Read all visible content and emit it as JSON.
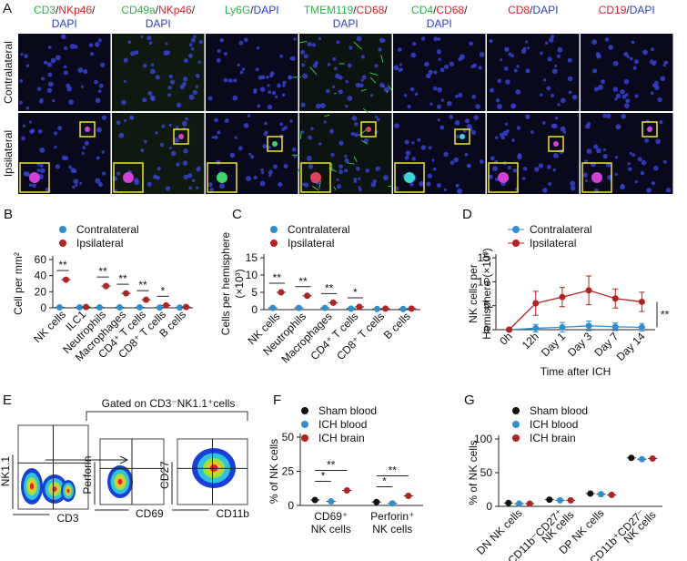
{
  "panel_a": {
    "label": "A",
    "rows": [
      "Contralateral",
      "Ipsilateral"
    ],
    "columns": [
      [
        [
          {
            "text": "CD3",
            "color": "#2db34a"
          },
          {
            "text": "/",
            "color": "#222222"
          },
          {
            "text": "NKp46",
            "color": "#e8212b"
          },
          {
            "text": "/",
            "color": "#222222"
          }
        ],
        [
          {
            "text": "DAPI",
            "color": "#2b3cd8"
          }
        ]
      ],
      [
        [
          {
            "text": "CD49a",
            "color": "#2db34a"
          },
          {
            "text": "/",
            "color": "#222222"
          },
          {
            "text": "NKp46",
            "color": "#e8212b"
          },
          {
            "text": "/",
            "color": "#222222"
          }
        ],
        [
          {
            "text": "DAPI",
            "color": "#2b3cd8"
          }
        ]
      ],
      [
        [
          {
            "text": "Ly6G",
            "color": "#2db34a"
          },
          {
            "text": "/",
            "color": "#222222"
          },
          {
            "text": "DAPI",
            "color": "#2b3cd8"
          }
        ]
      ],
      [
        [
          {
            "text": "TMEM119",
            "color": "#2db34a"
          },
          {
            "text": "/",
            "color": "#222222"
          },
          {
            "text": "CD68",
            "color": "#e8212b"
          },
          {
            "text": "/",
            "color": "#222222"
          }
        ],
        [
          {
            "text": "DAPI",
            "color": "#2b3cd8"
          }
        ]
      ],
      [
        [
          {
            "text": "CD4",
            "color": "#2db34a"
          },
          {
            "text": "/",
            "color": "#222222"
          },
          {
            "text": "CD68",
            "color": "#e8212b"
          },
          {
            "text": "/",
            "color": "#222222"
          }
        ],
        [
          {
            "text": "DAPI",
            "color": "#2b3cd8"
          }
        ]
      ],
      [
        [
          {
            "text": "CD8",
            "color": "#e8212b"
          },
          {
            "text": "/",
            "color": "#222222"
          },
          {
            "text": "DAPI",
            "color": "#2b3cd8"
          }
        ]
      ],
      [
        [
          {
            "text": "CD19",
            "color": "#e8212b"
          },
          {
            "text": "/",
            "color": "#222222"
          },
          {
            "text": "DAPI",
            "color": "#2b3cd8"
          }
        ]
      ]
    ]
  },
  "panel_e": {
    "label": "E",
    "gate": "Gated on CD3⁻NK1.1⁺cells",
    "plots": [
      {
        "y": "NK1.1",
        "x": "CD3"
      },
      {
        "y": "Perforin",
        "x": "CD69"
      },
      {
        "y": "CD27",
        "x": "CD11b"
      }
    ]
  },
  "chart_data": [
    {
      "type": "dot",
      "label": "B",
      "ylabel": [
        "Cell per mm²"
      ],
      "ylim": [
        0,
        60
      ],
      "yticks": [
        0,
        20,
        40,
        60
      ],
      "categories": [
        "NK cells",
        "ILC1",
        "Neutrophils",
        "Macrophages",
        "CD4⁺ T cells",
        "CD8⁺ T cells",
        "B cells"
      ],
      "series": [
        {
          "name": "Contralateral",
          "color": "#2e8fd0",
          "values": [
            0.5,
            0.5,
            0.5,
            0.5,
            0.5,
            0.3,
            0.3
          ]
        },
        {
          "name": "Ipsilateral",
          "color": "#b22222",
          "values": [
            35,
            1,
            27,
            18,
            10,
            3,
            1
          ]
        }
      ],
      "significance": [
        "**",
        null,
        "**",
        "**",
        "**",
        "*",
        null
      ]
    },
    {
      "type": "dot",
      "label": "C",
      "ylabel": [
        "Cells per hemisphere",
        "(×10³)"
      ],
      "ylim": [
        0,
        15
      ],
      "yticks": [
        0,
        5,
        10,
        15
      ],
      "categories": [
        "NK cells",
        "Neutrophils",
        "Macrophages",
        "CD4⁺ T cells",
        "CD8⁺ T cells",
        "B cells"
      ],
      "series": [
        {
          "name": "Contralateral",
          "color": "#2e8fd0",
          "values": [
            0.5,
            0.5,
            0.5,
            0.3,
            0.2,
            0.2
          ]
        },
        {
          "name": "Ipsilateral",
          "color": "#b22222",
          "values": [
            5,
            4,
            2,
            0.8,
            0.3,
            0.3
          ]
        }
      ],
      "significance": [
        "**",
        "**",
        "**",
        "*",
        null,
        null
      ]
    },
    {
      "type": "line",
      "label": "D",
      "ylabel": [
        "NK cells per",
        "Hemisphere (×10³)"
      ],
      "xlabel": "Time after ICH",
      "ylim": [
        0,
        15
      ],
      "yticks": [
        0,
        5,
        10,
        15
      ],
      "categories": [
        "0h",
        "12h",
        "Day 1",
        "Day 3",
        "Day 7",
        "Day 14"
      ],
      "series": [
        {
          "name": "Contralateral",
          "color": "#2e8fd0",
          "values": [
            0,
            0.3,
            0.5,
            0.8,
            0.6,
            0.5
          ],
          "errors": [
            0.3,
            0.8,
            1,
            1,
            0.8,
            0.8
          ]
        },
        {
          "name": "Ipsilateral",
          "color": "#b22222",
          "values": [
            0,
            5.5,
            6.8,
            8.2,
            6.5,
            5.8
          ],
          "errors": [
            0.2,
            2.5,
            2,
            3,
            2,
            2
          ]
        }
      ],
      "annotation": "**"
    },
    {
      "type": "dot",
      "label": "F",
      "ylabel": [
        "% of  NK cells"
      ],
      "ylim": [
        0,
        50
      ],
      "yticks": [
        0,
        25,
        50
      ],
      "categories": [
        [
          "CD69⁺",
          "NK cells"
        ],
        [
          "Perforin⁺",
          "NK cells"
        ]
      ],
      "series": [
        {
          "name": "Sham blood",
          "color": "#111111",
          "values": [
            4,
            2.5
          ]
        },
        {
          "name": "ICH blood",
          "color": "#2e8fd0",
          "values": [
            3,
            1.5
          ]
        },
        {
          "name": "ICH brain",
          "color": "#b22222",
          "values": [
            11,
            7
          ]
        }
      ],
      "significance": [
        [
          "*",
          "**"
        ],
        [
          "*",
          "**"
        ]
      ]
    },
    {
      "type": "dot",
      "label": "G",
      "ylabel": [
        "% of  NK cells"
      ],
      "ylim": [
        0,
        100
      ],
      "yticks": [
        0,
        50,
        100
      ],
      "categories": [
        "DN NK cells",
        [
          "CD11b⁻CD27⁺",
          "NK cells"
        ],
        "DP NK cells",
        [
          "CD11b⁺CD27⁻",
          "NK cells"
        ]
      ],
      "series": [
        {
          "name": "Sham blood",
          "color": "#111111",
          "values": [
            5,
            10,
            19,
            72
          ]
        },
        {
          "name": "ICH blood",
          "color": "#2e8fd0",
          "values": [
            4,
            9,
            18,
            70
          ]
        },
        {
          "name": "ICH brain",
          "color": "#b22222",
          "values": [
            4,
            9,
            17,
            71
          ]
        }
      ]
    }
  ]
}
